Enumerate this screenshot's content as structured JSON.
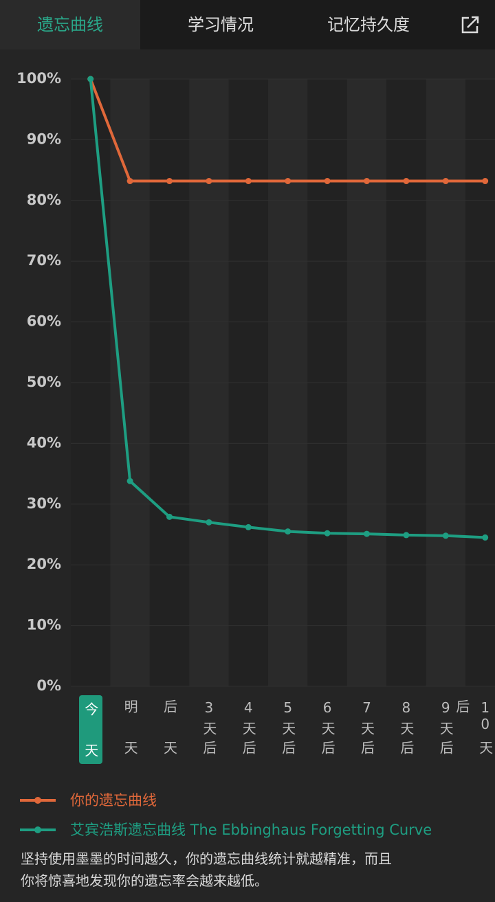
{
  "tabs": [
    "遗忘曲线",
    "学习情况",
    "记忆持久度"
  ],
  "chart_data": {
    "type": "line",
    "categories": [
      "今天",
      "明天",
      "后天",
      "3天后",
      "4天后",
      "5天后",
      "6天后",
      "7天后",
      "8天后",
      "9天后",
      "10天后"
    ],
    "series": [
      {
        "name": "你的遗忘曲线",
        "color": "#e0683a",
        "values": [
          100,
          83.2,
          83.2,
          83.2,
          83.2,
          83.2,
          83.2,
          83.2,
          83.2,
          83.2,
          83.2
        ]
      },
      {
        "name": "艾宾浩斯遗忘曲线 The Ebbinghaus Forgetting Curve",
        "color": "#1e9e82",
        "values": [
          100,
          33.8,
          27.9,
          27.0,
          26.2,
          25.5,
          25.2,
          25.1,
          24.9,
          24.8,
          24.5
        ]
      }
    ],
    "ylim": [
      0,
      100
    ],
    "yticks": [
      {
        "value": 0,
        "label": "0%"
      },
      {
        "value": 10,
        "label": "10%"
      },
      {
        "value": 20,
        "label": "20%"
      },
      {
        "value": 30,
        "label": "30%"
      },
      {
        "value": 40,
        "label": "40%"
      },
      {
        "value": 50,
        "label": "50%"
      },
      {
        "value": 60,
        "label": "60%"
      },
      {
        "value": 70,
        "label": "70%"
      },
      {
        "value": 80,
        "label": "80%"
      },
      {
        "value": 90,
        "label": "90%"
      },
      {
        "value": 100,
        "label": "100%"
      }
    ],
    "grid": true
  },
  "note": [
    "坚持使用墨墨的时间越久，你的遗忘曲线统计就越精准，而且",
    "你将惊喜地发现你的遗忘率会越来越低。"
  ]
}
